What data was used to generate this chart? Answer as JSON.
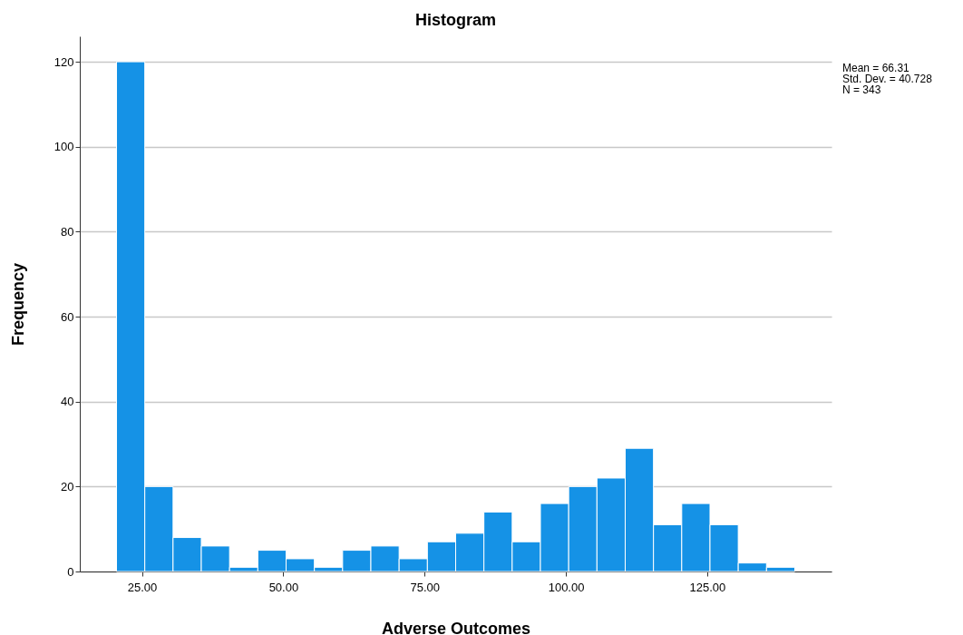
{
  "chart_data": {
    "type": "histogram",
    "title": "Histogram",
    "xlabel": "Adverse Outcomes",
    "ylabel": "Frequency",
    "bins": [
      20.5,
      25.5,
      30.5,
      35.5,
      40.5,
      45.5,
      50.5,
      55.5,
      60.5,
      65.5,
      70.5,
      75.5,
      80.5,
      85.5,
      90.5,
      95.5,
      100.5,
      105.5,
      110.5,
      115.5,
      120.5,
      125.5,
      130.5,
      135.5,
      140.5
    ],
    "values": [
      120,
      20,
      8,
      6,
      1,
      5,
      3,
      1,
      5,
      6,
      3,
      7,
      9,
      14,
      7,
      16,
      20,
      22,
      29,
      11,
      16,
      11,
      2,
      1
    ],
    "color": "#1592e6",
    "xlim": [
      14,
      147
    ],
    "ylim": [
      0,
      126
    ],
    "xticks": [
      {
        "value": 25,
        "label": "25.00"
      },
      {
        "value": 50,
        "label": "50.00"
      },
      {
        "value": 75,
        "label": "75.00"
      },
      {
        "value": 100,
        "label": "100.00"
      },
      {
        "value": 125,
        "label": "125.00"
      }
    ],
    "yticks": [
      0,
      20,
      40,
      60,
      80,
      100,
      120
    ],
    "grid": "y",
    "annotations": [
      "Mean = 66.31",
      "Std. Dev. = 40.728",
      "N = 343"
    ]
  }
}
